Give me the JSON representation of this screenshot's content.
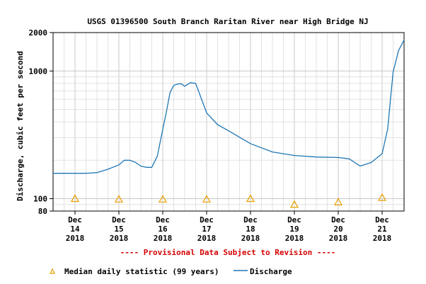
{
  "chart_data": {
    "type": "line",
    "title": "USGS 01396500 South Branch Raritan River near High Bridge NJ",
    "ylabel": "Discharge, cubic feet per second",
    "y_scale": "log",
    "ylim": [
      80,
      2000
    ],
    "y_ticks": [
      {
        "value": 80,
        "label": "80"
      },
      {
        "value": 100,
        "label": "100"
      },
      {
        "value": 1000,
        "label": "1000"
      },
      {
        "value": 2000,
        "label": "2000"
      }
    ],
    "xlim": [
      "2018-12-13T12:00",
      "2018-12-21T12:00"
    ],
    "x_ticks": [
      {
        "date": "2018-12-14",
        "month": "Dec",
        "day": "14",
        "year": "2018"
      },
      {
        "date": "2018-12-15",
        "month": "Dec",
        "day": "15",
        "year": "2018"
      },
      {
        "date": "2018-12-16",
        "month": "Dec",
        "day": "16",
        "year": "2018"
      },
      {
        "date": "2018-12-17",
        "month": "Dec",
        "day": "17",
        "year": "2018"
      },
      {
        "date": "2018-12-18",
        "month": "Dec",
        "day": "18",
        "year": "2018"
      },
      {
        "date": "2018-12-19",
        "month": "Dec",
        "day": "19",
        "year": "2018"
      },
      {
        "date": "2018-12-20",
        "month": "Dec",
        "day": "20",
        "year": "2018"
      },
      {
        "date": "2018-12-21",
        "month": "Dec",
        "day": "21",
        "year": "2018"
      }
    ],
    "grid": true,
    "notice": "---- Provisional Data Subject to Revision ----",
    "legend": [
      "Median daily statistic (99 years)",
      "Discharge"
    ],
    "colors": {
      "discharge": "#1f77b4",
      "median": "#e8a000",
      "notice": "#d40000"
    },
    "series": [
      {
        "name": "Discharge",
        "points": [
          [
            "2018-12-13T12:00",
            158
          ],
          [
            "2018-12-14T00:00",
            158
          ],
          [
            "2018-12-14T06:00",
            158
          ],
          [
            "2018-12-14T12:00",
            160
          ],
          [
            "2018-12-14T18:00",
            170
          ],
          [
            "2018-12-15T00:00",
            184
          ],
          [
            "2018-12-15T03:00",
            200
          ],
          [
            "2018-12-15T06:00",
            200
          ],
          [
            "2018-12-15T09:00",
            193
          ],
          [
            "2018-12-15T12:00",
            180
          ],
          [
            "2018-12-15T15:00",
            176
          ],
          [
            "2018-12-15T18:00",
            176
          ],
          [
            "2018-12-15T21:00",
            215
          ],
          [
            "2018-12-16T00:00",
            350
          ],
          [
            "2018-12-16T02:00",
            480
          ],
          [
            "2018-12-16T04:00",
            680
          ],
          [
            "2018-12-16T06:00",
            770
          ],
          [
            "2018-12-16T08:00",
            790
          ],
          [
            "2018-12-16T10:00",
            795
          ],
          [
            "2018-12-16T12:00",
            760
          ],
          [
            "2018-12-16T15:00",
            810
          ],
          [
            "2018-12-16T18:00",
            800
          ],
          [
            "2018-12-17T00:00",
            470
          ],
          [
            "2018-12-17T06:00",
            380
          ],
          [
            "2018-12-17T12:00",
            340
          ],
          [
            "2018-12-18T00:00",
            270
          ],
          [
            "2018-12-18T12:00",
            232
          ],
          [
            "2018-12-19T00:00",
            218
          ],
          [
            "2018-12-19T12:00",
            212
          ],
          [
            "2018-12-20T00:00",
            210
          ],
          [
            "2018-12-20T06:00",
            205
          ],
          [
            "2018-12-20T12:00",
            180
          ],
          [
            "2018-12-20T18:00",
            192
          ],
          [
            "2018-12-21T00:00",
            225
          ],
          [
            "2018-12-21T03:00",
            350
          ],
          [
            "2018-12-21T06:00",
            980
          ],
          [
            "2018-12-21T09:00",
            1450
          ],
          [
            "2018-12-21T12:00",
            1750
          ]
        ]
      },
      {
        "name": "Median daily statistic (99 years)",
        "points": [
          [
            "2018-12-14T00:00",
            100
          ],
          [
            "2018-12-15T00:00",
            99
          ],
          [
            "2018-12-16T00:00",
            99
          ],
          [
            "2018-12-17T00:00",
            99
          ],
          [
            "2018-12-18T00:00",
            100
          ],
          [
            "2018-12-19T00:00",
            90
          ],
          [
            "2018-12-20T00:00",
            94
          ],
          [
            "2018-12-21T00:00",
            102
          ]
        ]
      }
    ]
  }
}
